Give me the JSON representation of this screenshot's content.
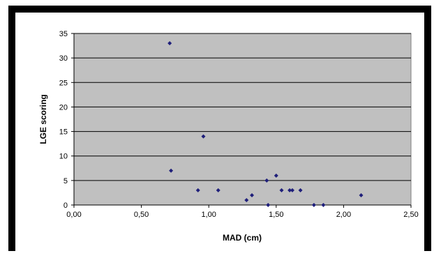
{
  "chart_data": {
    "type": "scatter",
    "title": "",
    "xlabel": "MAD (cm)",
    "ylabel": "LGE scoring",
    "xlim": [
      0,
      2.5
    ],
    "ylim": [
      0,
      35
    ],
    "x_ticks": [
      "0,00",
      "0,50",
      "1,00",
      "1,50",
      "2,00",
      "2,50"
    ],
    "y_ticks": [
      "0",
      "5",
      "10",
      "15",
      "20",
      "25",
      "30",
      "35"
    ],
    "grid": "horizontal",
    "legend": "none",
    "colors": {
      "plot_background": "#c0c0c0",
      "marker": "#1f1f7a",
      "outer_frame": "#000000"
    },
    "points": [
      {
        "x": 0.71,
        "y": 33
      },
      {
        "x": 0.72,
        "y": 7
      },
      {
        "x": 0.92,
        "y": 3
      },
      {
        "x": 0.96,
        "y": 14
      },
      {
        "x": 1.07,
        "y": 3
      },
      {
        "x": 1.28,
        "y": 1
      },
      {
        "x": 1.32,
        "y": 2
      },
      {
        "x": 1.43,
        "y": 5
      },
      {
        "x": 1.44,
        "y": 0
      },
      {
        "x": 1.5,
        "y": 6
      },
      {
        "x": 1.54,
        "y": 3
      },
      {
        "x": 1.6,
        "y": 3
      },
      {
        "x": 1.62,
        "y": 3
      },
      {
        "x": 1.68,
        "y": 3
      },
      {
        "x": 1.78,
        "y": 0
      },
      {
        "x": 1.85,
        "y": 0
      },
      {
        "x": 2.13,
        "y": 2
      }
    ]
  }
}
